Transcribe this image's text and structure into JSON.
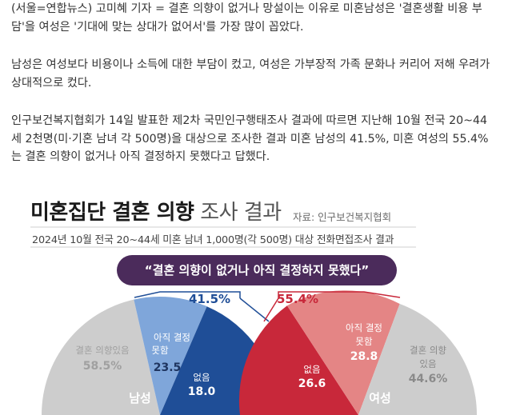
{
  "article": {
    "p1": "(서울=연합뉴스) 고미혜 기자 = 결혼 의향이 없거나 망설이는 이유로 미혼남성은 '결혼생활 비용 부담'을 여성은 '기대에 맞는 상대가 없어서'를 가장 많이 꼽았다.",
    "p2": "남성은 여성보다 비용이나 소득에 대한 부담이 컸고, 여성은 가부장적 가족 문화나 커리어 저해 우려가 상대적으로 컸다.",
    "p3": "인구보건복지협회가 14일 발표한 제2차 국민인구행태조사 결과에 따르면 지난해 10월 전국 20~44세 2천명(미·기혼 남녀 각 500명)을 대상으로 조사한 결과 미혼 남성의 41.5%, 미혼 여성의 55.4%는 결혼 의향이 없거나 아직 결정하지 못했다고 답했다."
  },
  "infographic": {
    "title_bold": "미혼집단 결혼 의향",
    "title_light": " 조사 결과",
    "source": "자료: 인구보건복지협회",
    "subtitle": "2024년 10월 전국 20~44세 미혼 남녀 1,000명(각 500명) 대상 전화면접조사 결과",
    "quote": "“결혼 의향이 없거나 아직 결정하지 못했다”",
    "male": {
      "label": "남성",
      "total_pct": "41.5%",
      "yes_label": "결혼 의향있음",
      "yes_value": "58.5%",
      "undecided_label_1": "아직 결정",
      "undecided_label_2": "못함",
      "undecided_value": "23.5",
      "none_label": "없음",
      "none_value": "18.0"
    },
    "female": {
      "label": "여성",
      "total_pct": "55.4%",
      "yes_label_1": "결혼 의향",
      "yes_label_2": "있음",
      "yes_value": "44.6%",
      "undecided_label_1": "아직 결정",
      "undecided_label_2": "못함",
      "undecided_value": "28.8",
      "none_label": "없음",
      "none_value": "26.6"
    },
    "colors": {
      "male_dark": "#1f4e97",
      "male_light": "#7fa6da",
      "female_dark": "#c8283a",
      "female_light": "#e48585",
      "grey": "#cdcdcd",
      "quote_bg": "#4b2b5b"
    }
  }
}
